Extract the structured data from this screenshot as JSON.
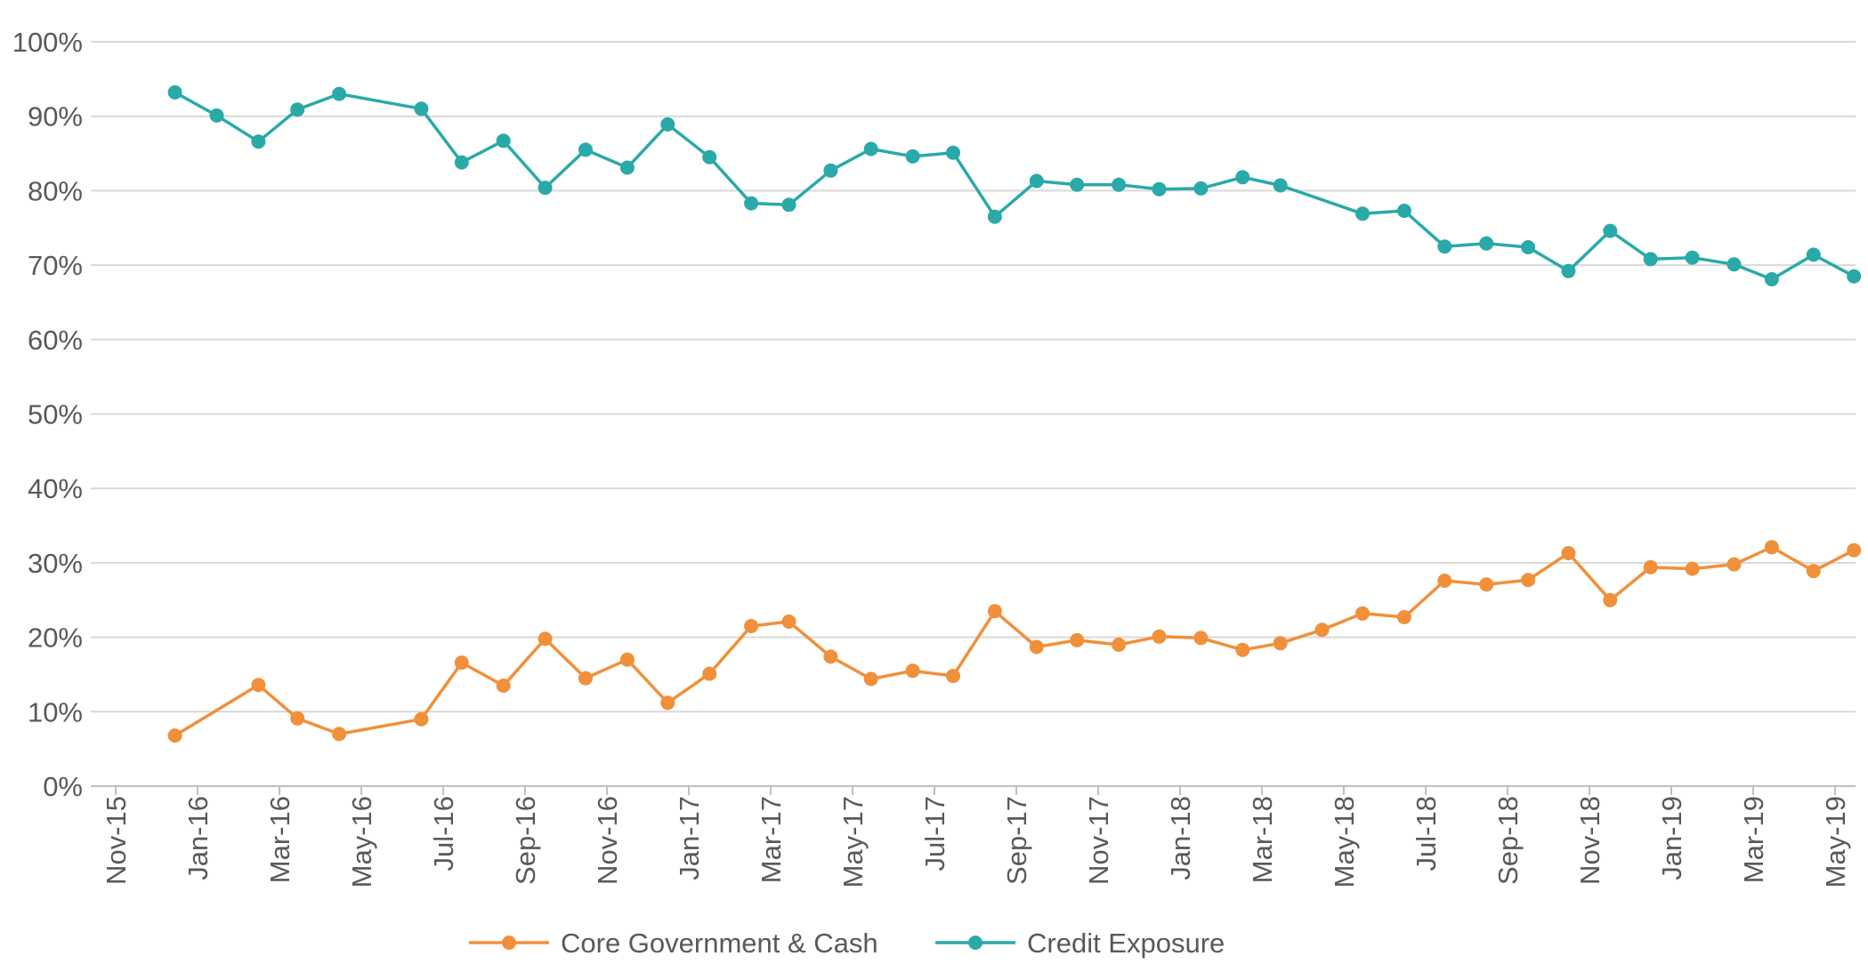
{
  "chart_data": {
    "type": "line",
    "title": "",
    "xlabel": "",
    "ylabel": "",
    "ylim": [
      0,
      100
    ],
    "yticks": [
      "0%",
      "10%",
      "20%",
      "30%",
      "40%",
      "50%",
      "60%",
      "70%",
      "80%",
      "90%",
      "100%"
    ],
    "xticks": [
      "Nov-15",
      "Jan-16",
      "Mar-16",
      "May-16",
      "Jul-16",
      "Sep-16",
      "Nov-16",
      "Jan-17",
      "Mar-17",
      "May-17",
      "Jul-17",
      "Sep-17",
      "Nov-17",
      "Jan-18",
      "Mar-18",
      "May-18",
      "Jul-18",
      "Sep-18",
      "Nov-18",
      "Jan-19",
      "Mar-19",
      "May-19"
    ],
    "x": [
      "2015-12-15",
      "2016-01-15",
      "2016-02-15",
      "2016-03-15",
      "2016-04-15",
      "2016-06-15",
      "2016-07-15",
      "2016-08-15",
      "2016-09-15",
      "2016-10-15",
      "2016-11-15",
      "2016-12-15",
      "2017-01-15",
      "2017-02-15",
      "2017-03-15",
      "2017-04-15",
      "2017-05-15",
      "2017-06-15",
      "2017-07-15",
      "2017-08-15",
      "2017-09-15",
      "2017-10-15",
      "2017-11-15",
      "2017-12-15",
      "2018-01-15",
      "2018-02-15",
      "2018-03-15",
      "2018-05-15",
      "2018-06-15",
      "2018-07-15",
      "2018-08-15",
      "2018-09-15",
      "2018-10-15",
      "2018-11-15",
      "2018-12-15",
      "2019-01-15",
      "2019-02-15",
      "2019-03-15",
      "2019-04-15",
      "2019-05-15"
    ],
    "series": [
      {
        "name": "Core Government & Cash",
        "color": "#f0903a",
        "points": [
          [
            "2015-12-15",
            6.8
          ],
          [
            "2016-02-15",
            13.6
          ],
          [
            "2016-03-15",
            9.1
          ],
          [
            "2016-04-15",
            7.0
          ],
          [
            "2016-06-15",
            9.0
          ],
          [
            "2016-07-15",
            16.6
          ],
          [
            "2016-08-15",
            13.5
          ],
          [
            "2016-09-15",
            19.8
          ],
          [
            "2016-10-15",
            14.5
          ],
          [
            "2016-11-15",
            17.0
          ],
          [
            "2016-12-15",
            11.2
          ],
          [
            "2017-01-15",
            15.1
          ],
          [
            "2017-02-15",
            21.5
          ],
          [
            "2017-03-15",
            22.1
          ],
          [
            "2017-04-15",
            17.4
          ],
          [
            "2017-05-15",
            14.4
          ],
          [
            "2017-06-15",
            15.5
          ],
          [
            "2017-07-15",
            14.8
          ],
          [
            "2017-08-15",
            23.5
          ],
          [
            "2017-09-15",
            18.7
          ],
          [
            "2017-10-15",
            19.6
          ],
          [
            "2017-11-15",
            19.0
          ],
          [
            "2017-12-15",
            20.1
          ],
          [
            "2018-01-15",
            19.9
          ],
          [
            "2018-02-15",
            18.3
          ],
          [
            "2018-03-15",
            19.2
          ],
          [
            "2018-04-15",
            21.0
          ],
          [
            "2018-05-15",
            23.2
          ],
          [
            "2018-06-15",
            22.7
          ],
          [
            "2018-07-15",
            27.6
          ],
          [
            "2018-08-15",
            27.1
          ],
          [
            "2018-09-15",
            27.7
          ],
          [
            "2018-10-15",
            31.3
          ],
          [
            "2018-11-15",
            25.0
          ],
          [
            "2018-12-15",
            29.4
          ],
          [
            "2019-01-15",
            29.2
          ],
          [
            "2019-02-15",
            29.8
          ],
          [
            "2019-03-15",
            32.1
          ],
          [
            "2019-04-15",
            28.9
          ],
          [
            "2019-05-15",
            31.7
          ]
        ]
      },
      {
        "name": "Credit Exposure",
        "color": "#2aa9a9",
        "points": [
          [
            "2015-12-15",
            93.2
          ],
          [
            "2016-01-15",
            90.1
          ],
          [
            "2016-02-15",
            86.6
          ],
          [
            "2016-03-15",
            90.9
          ],
          [
            "2016-04-15",
            93.0
          ],
          [
            "2016-06-15",
            91.0
          ],
          [
            "2016-07-15",
            83.8
          ],
          [
            "2016-08-15",
            86.7
          ],
          [
            "2016-09-15",
            80.4
          ],
          [
            "2016-10-15",
            85.5
          ],
          [
            "2016-11-15",
            83.1
          ],
          [
            "2016-12-15",
            88.9
          ],
          [
            "2017-01-15",
            84.5
          ],
          [
            "2017-02-15",
            78.3
          ],
          [
            "2017-03-15",
            78.1
          ],
          [
            "2017-04-15",
            82.7
          ],
          [
            "2017-05-15",
            85.6
          ],
          [
            "2017-06-15",
            84.6
          ],
          [
            "2017-07-15",
            85.1
          ],
          [
            "2017-08-15",
            76.5
          ],
          [
            "2017-09-15",
            81.3
          ],
          [
            "2017-10-15",
            80.8
          ],
          [
            "2017-11-15",
            80.8
          ],
          [
            "2017-12-15",
            80.2
          ],
          [
            "2018-01-15",
            80.3
          ],
          [
            "2018-02-15",
            81.8
          ],
          [
            "2018-03-15",
            80.7
          ],
          [
            "2018-05-15",
            76.9
          ],
          [
            "2018-06-15",
            77.3
          ],
          [
            "2018-07-15",
            72.5
          ],
          [
            "2018-08-15",
            72.9
          ],
          [
            "2018-09-15",
            72.4
          ],
          [
            "2018-10-15",
            69.2
          ],
          [
            "2018-11-15",
            74.6
          ],
          [
            "2018-12-15",
            70.8
          ],
          [
            "2019-01-15",
            71.0
          ],
          [
            "2019-02-15",
            70.1
          ],
          [
            "2019-03-15",
            68.1
          ],
          [
            "2019-04-15",
            71.4
          ],
          [
            "2019-05-15",
            68.5
          ]
        ]
      }
    ],
    "grid": true,
    "legend_position": "bottom-center"
  }
}
